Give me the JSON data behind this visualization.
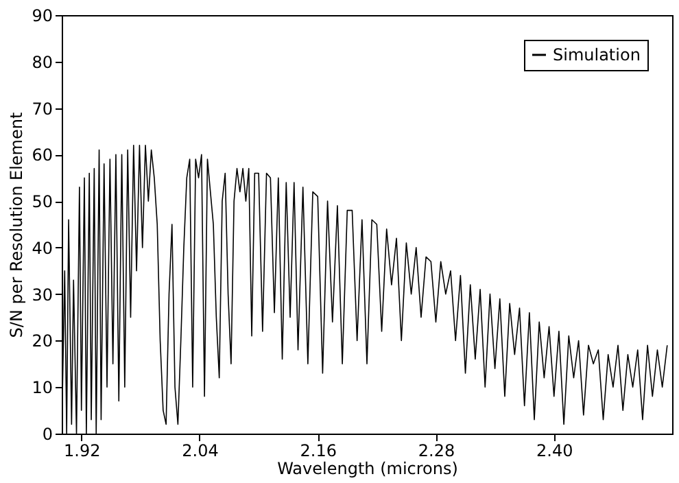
{
  "chart_data": {
    "type": "line",
    "xlabel": "Wavelength (microns)",
    "ylabel": "S/N per Resolution Element",
    "xlim": [
      1.9,
      2.52
    ],
    "xticks": [
      1.92,
      2.04,
      2.16,
      2.28,
      {
        "value": 2.4,
        "label": "2.40"
      }
    ],
    "ylim": [
      0,
      90
    ],
    "yticks": [
      0,
      10,
      20,
      30,
      40,
      50,
      60,
      70,
      80,
      90
    ],
    "grid": false,
    "legend": "top right",
    "x": [
      1.9,
      1.903,
      1.905,
      1.907,
      1.91,
      1.912,
      1.915,
      1.918,
      1.92,
      1.923,
      1.925,
      1.928,
      1.93,
      1.933,
      1.935,
      1.938,
      1.94,
      1.943,
      1.946,
      1.949,
      1.952,
      1.955,
      1.958,
      1.961,
      1.964,
      1.967,
      1.97,
      1.973,
      1.976,
      1.979,
      1.982,
      1.985,
      1.988,
      1.991,
      1.994,
      1.997,
      2.0,
      2.003,
      2.006,
      2.009,
      2.012,
      2.015,
      2.018,
      2.021,
      2.024,
      2.027,
      2.03,
      2.033,
      2.036,
      2.039,
      2.042,
      2.045,
      2.048,
      2.051,
      2.054,
      2.057,
      2.06,
      2.063,
      2.066,
      2.069,
      2.072,
      2.075,
      2.078,
      2.081,
      2.084,
      2.087,
      2.09,
      2.093,
      2.096,
      2.1,
      2.104,
      2.108,
      2.112,
      2.116,
      2.12,
      2.124,
      2.128,
      2.132,
      2.136,
      2.14,
      2.145,
      2.15,
      2.155,
      2.16,
      2.165,
      2.17,
      2.175,
      2.18,
      2.185,
      2.19,
      2.195,
      2.2,
      2.205,
      2.21,
      2.215,
      2.22,
      2.225,
      2.23,
      2.235,
      2.24,
      2.245,
      2.25,
      2.255,
      2.26,
      2.265,
      2.27,
      2.275,
      2.28,
      2.285,
      2.29,
      2.295,
      2.3,
      2.305,
      2.31,
      2.315,
      2.32,
      2.325,
      2.33,
      2.335,
      2.34,
      2.345,
      2.35,
      2.355,
      2.36,
      2.365,
      2.37,
      2.375,
      2.38,
      2.385,
      2.39,
      2.395,
      2.4,
      2.405,
      2.41,
      2.415,
      2.42,
      2.425,
      2.43,
      2.435,
      2.44,
      2.445,
      2.45,
      2.455,
      2.46,
      2.465,
      2.47,
      2.475,
      2.48,
      2.485,
      2.49,
      2.495,
      2.5,
      2.505,
      2.51,
      2.515
    ],
    "series": [
      {
        "name": "Simulation",
        "color": "#000000",
        "values": [
          0,
          35,
          0,
          46,
          2,
          33,
          0,
          53,
          5,
          55,
          0,
          56,
          3,
          57,
          0,
          61,
          3,
          58,
          10,
          59,
          15,
          60,
          7,
          60,
          10,
          61,
          25,
          62,
          35,
          62,
          40,
          62,
          50,
          61,
          55,
          45,
          20,
          5,
          2,
          30,
          45,
          10,
          2,
          20,
          40,
          55,
          59,
          10,
          59,
          55,
          60,
          8,
          59,
          52,
          45,
          25,
          12,
          50,
          56,
          30,
          15,
          50,
          57,
          52,
          57,
          50,
          57,
          21,
          56,
          56,
          22,
          56,
          55,
          26,
          55,
          16,
          54,
          25,
          54,
          18,
          53,
          15,
          52,
          51,
          13,
          50,
          24,
          49,
          15,
          48,
          48,
          20,
          46,
          15,
          46,
          45,
          22,
          44,
          32,
          42,
          20,
          41,
          30,
          40,
          25,
          38,
          37,
          24,
          37,
          30,
          35,
          20,
          34,
          13,
          32,
          16,
          31,
          10,
          30,
          14,
          29,
          8,
          28,
          17,
          27,
          6,
          26,
          3,
          24,
          12,
          23,
          8,
          22,
          2,
          21,
          12,
          20,
          4,
          19,
          15,
          18,
          3,
          17,
          10,
          19,
          5,
          17,
          10,
          18,
          3,
          19,
          8,
          18,
          10,
          19
        ]
      }
    ]
  }
}
